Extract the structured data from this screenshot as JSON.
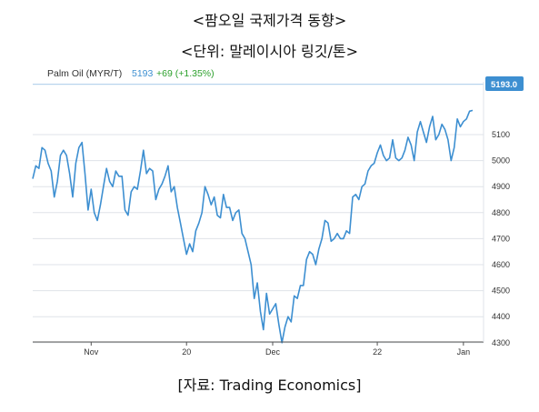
{
  "header": {
    "title": "<팜오일 국제가격 동향>",
    "unit": "<단위: 말레이시아 링깃/톤>"
  },
  "footer": {
    "source": "[자료: Trading Economics]"
  },
  "chart_data": {
    "type": "line",
    "legend": {
      "name": "Palm Oil (MYR/T)",
      "last": "5193",
      "change": "+69 (+1.35%)"
    },
    "last_value_badge": "5193.0",
    "colors": {
      "line": "#3d8fd1",
      "change": "#2ca02c",
      "badge": "#3d8fd1",
      "grid": "#dfe3e8"
    },
    "grid": true,
    "ylim": [
      4200,
      5300
    ],
    "y_ticks": [
      4300,
      4400,
      4500,
      4600,
      4700,
      4800,
      4900,
      5000,
      5100
    ],
    "x_tick_labels": [
      {
        "label": "Nov",
        "index": 19
      },
      {
        "label": "20",
        "index": 50
      },
      {
        "label": "Dec",
        "index": 78
      },
      {
        "label": "22",
        "index": 112
      },
      {
        "label": "Jan",
        "index": 140
      },
      {
        "label": "20",
        "index": 178
      }
    ],
    "values": [
      4930,
      4980,
      4970,
      5050,
      5040,
      4990,
      4960,
      4860,
      4920,
      5020,
      5040,
      5020,
      4950,
      4860,
      4990,
      5050,
      5070,
      4950,
      4810,
      4890,
      4800,
      4770,
      4830,
      4900,
      4970,
      4920,
      4900,
      4960,
      4940,
      4940,
      4810,
      4790,
      4880,
      4900,
      4890,
      4960,
      5040,
      4950,
      4970,
      4960,
      4850,
      4890,
      4910,
      4940,
      4980,
      4880,
      4900,
      4820,
      4760,
      4700,
      4640,
      4680,
      4650,
      4730,
      4760,
      4800,
      4900,
      4870,
      4830,
      4860,
      4790,
      4780,
      4870,
      4820,
      4820,
      4770,
      4800,
      4810,
      4720,
      4700,
      4650,
      4600,
      4470,
      4530,
      4420,
      4350,
      4490,
      4410,
      4430,
      4450,
      4370,
      4300,
      4360,
      4400,
      4380,
      4480,
      4470,
      4520,
      4520,
      4620,
      4650,
      4640,
      4600,
      4660,
      4700,
      4770,
      4760,
      4690,
      4700,
      4720,
      4700,
      4700,
      4730,
      4720,
      4860,
      4870,
      4850,
      4900,
      4910,
      4960,
      4980,
      4990,
      5030,
      5060,
      5020,
      5000,
      5010,
      5080,
      5010,
      5000,
      5010,
      5040,
      5090,
      5060,
      5000,
      5110,
      5150,
      5110,
      5070,
      5130,
      5170,
      5080,
      5100,
      5140,
      5120,
      5080,
      5000,
      5050,
      5160,
      5130,
      5150,
      5160,
      5190,
      5193
    ]
  }
}
